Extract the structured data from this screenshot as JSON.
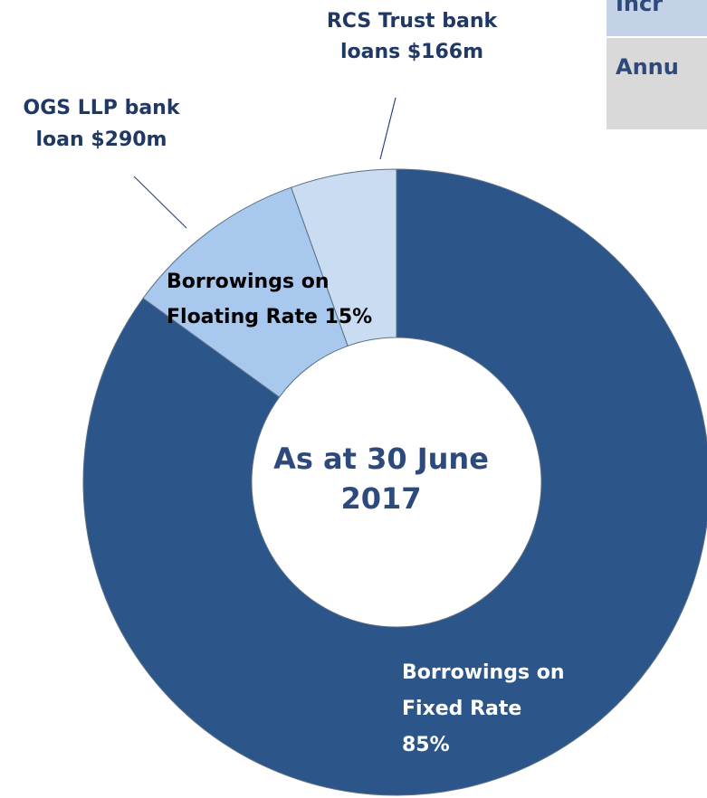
{
  "chart_data": {
    "type": "pie",
    "style": "donut",
    "center_label": [
      "As at 30 June",
      "2017"
    ],
    "slices": [
      {
        "name": "Borrowings on Fixed Rate",
        "percent": 85,
        "color": "#2c5689"
      },
      {
        "name": "OGS LLP bank loan",
        "value_musd": 290,
        "color": "#a9c8ee"
      },
      {
        "name": "RCS Trust bank loans",
        "value_musd": 166,
        "color": "#c9dcf2"
      }
    ],
    "floating_total_percent": 15,
    "labels": {
      "fixed": [
        "Borrowings on",
        "Fixed Rate",
        "85%"
      ],
      "floating": [
        "Borrowings on",
        "Floating Rate 15%"
      ],
      "ogs": [
        "OGS LLP bank",
        "loan $290m"
      ],
      "rcs": [
        "RCS Trust bank",
        "loans $166m"
      ]
    }
  },
  "table_fragment": {
    "rows": [
      "Incr",
      "Annu"
    ],
    "colors": {
      "row1": "#c3d2e6",
      "row2": "#d9d9d9",
      "border": "#ffffff"
    }
  }
}
